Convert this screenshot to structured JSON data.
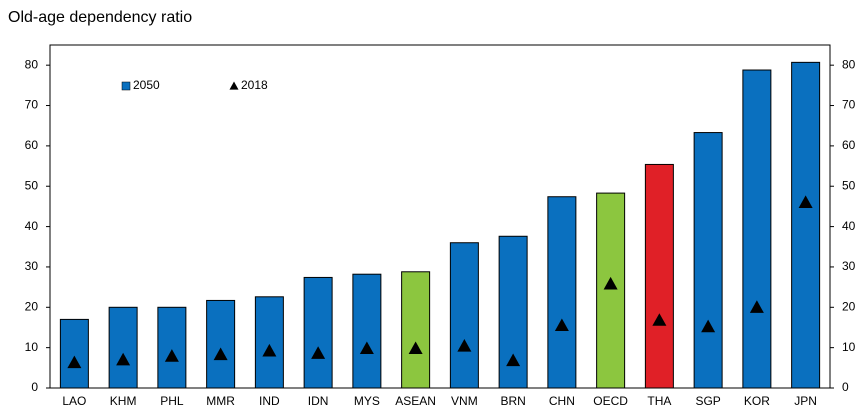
{
  "chart_data": {
    "type": "bar",
    "title": "Old-age dependency ratio",
    "categories": [
      "LAO",
      "KHM",
      "PHL",
      "MMR",
      "IND",
      "IDN",
      "MYS",
      "ASEAN",
      "VNM",
      "BRN",
      "CHN",
      "OECD",
      "THA",
      "SGP",
      "KOR",
      "JPN"
    ],
    "series": [
      {
        "name": "2050",
        "color": "#0a70bf",
        "mark": "bar",
        "colors": [
          "#0a70bf",
          "#0a70bf",
          "#0a70bf",
          "#0a70bf",
          "#0a70bf",
          "#0a70bf",
          "#0a70bf",
          "#8cc63f",
          "#0a70bf",
          "#0a70bf",
          "#0a70bf",
          "#8cc63f",
          "#e02027",
          "#0a70bf",
          "#0a70bf",
          "#0a70bf"
        ],
        "values": [
          17,
          20,
          20,
          21.7,
          22.6,
          27.4,
          28.2,
          28.8,
          36,
          37.6,
          47.4,
          48.3,
          55.4,
          63.3,
          78.8,
          80.7
        ]
      },
      {
        "name": "2018",
        "color": "#000000",
        "mark": "triangle",
        "values": [
          6.3,
          7,
          7.9,
          8.3,
          9.2,
          8.6,
          9.8,
          9.8,
          10.4,
          6.8,
          15.5,
          25.8,
          16.8,
          15.2,
          20,
          46
        ]
      }
    ],
    "ylim": [
      0,
      85
    ],
    "yticks": [
      0,
      10,
      20,
      30,
      40,
      50,
      60,
      70,
      80
    ],
    "y2lim": [
      0,
      85
    ],
    "y2ticks": [
      0,
      10,
      20,
      30,
      40,
      50,
      60,
      70,
      80
    ],
    "grid": false
  }
}
